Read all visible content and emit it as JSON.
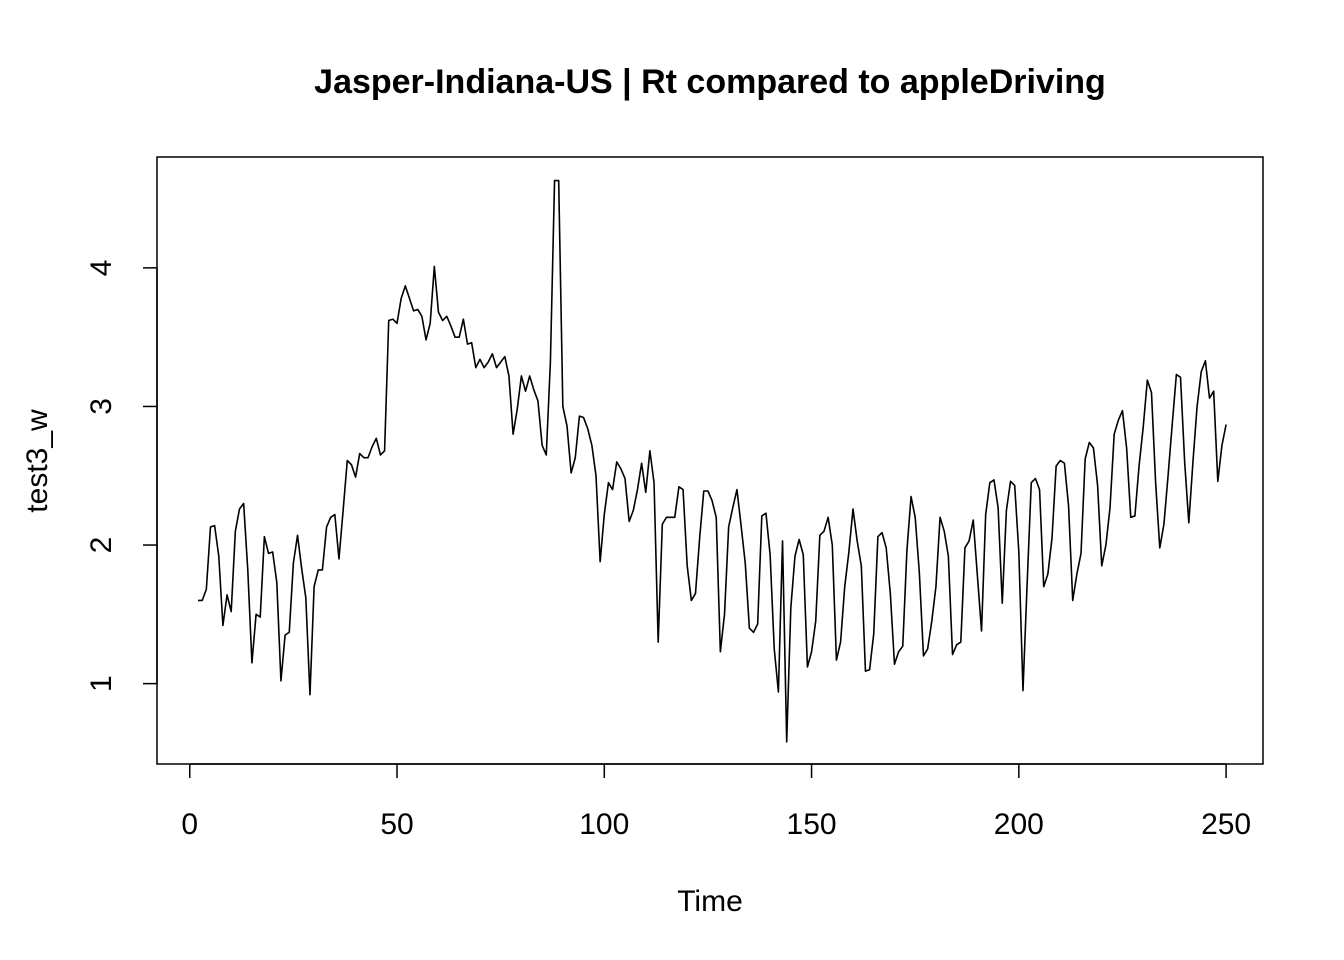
{
  "chart_data": {
    "type": "line",
    "title": "Jasper-Indiana-US | Rt compared to appleDriving",
    "xlabel": "Time",
    "ylabel": "test3_w",
    "xlim": [
      -7.9,
      258.9
    ],
    "ylim": [
      0.42,
      4.8
    ],
    "xticks": [
      0,
      50,
      100,
      150,
      200,
      250
    ],
    "xtick_labels": [
      "0",
      "50",
      "100",
      "150",
      "200",
      "250"
    ],
    "yticks": [
      1,
      2,
      3,
      4
    ],
    "ytick_labels": [
      "1",
      "2",
      "3",
      "4"
    ],
    "grid": false,
    "legend": "none",
    "line_color": "#000000",
    "x_start": 2,
    "series": [
      {
        "values": [
          1.6,
          1.6,
          1.68,
          2.13,
          2.14,
          1.92,
          1.42,
          1.64,
          1.52,
          2.1,
          2.26,
          2.3,
          1.82,
          1.15,
          1.5,
          1.48,
          2.06,
          1.94,
          1.95,
          1.73,
          1.02,
          1.35,
          1.37,
          1.87,
          2.07,
          1.83,
          1.62,
          0.92,
          1.7,
          1.82,
          1.82,
          2.13,
          2.2,
          2.22,
          1.9,
          2.25,
          2.61,
          2.58,
          2.49,
          2.66,
          2.63,
          2.63,
          2.71,
          2.77,
          2.65,
          2.68,
          3.62,
          3.63,
          3.6,
          3.78,
          3.87,
          3.78,
          3.69,
          3.7,
          3.65,
          3.48,
          3.6,
          4.01,
          3.68,
          3.62,
          3.65,
          3.58,
          3.5,
          3.5,
          3.63,
          3.45,
          3.46,
          3.28,
          3.34,
          3.28,
          3.32,
          3.38,
          3.28,
          3.32,
          3.36,
          3.22,
          2.8,
          2.98,
          3.22,
          3.11,
          3.22,
          3.12,
          3.04,
          2.72,
          2.65,
          3.32,
          4.63,
          4.63,
          3.0,
          2.86,
          2.52,
          2.63,
          2.93,
          2.92,
          2.84,
          2.72,
          2.5,
          1.88,
          2.22,
          2.45,
          2.4,
          2.6,
          2.55,
          2.48,
          2.17,
          2.25,
          2.4,
          2.59,
          2.38,
          2.68,
          2.45,
          1.3,
          2.15,
          2.2,
          2.2,
          2.2,
          2.42,
          2.4,
          1.85,
          1.6,
          1.65,
          2.05,
          2.39,
          2.39,
          2.32,
          2.2,
          1.23,
          1.5,
          2.13,
          2.27,
          2.4,
          2.14,
          1.87,
          1.4,
          1.37,
          1.43,
          2.21,
          2.23,
          1.93,
          1.25,
          0.94,
          2.03,
          0.58,
          1.55,
          1.92,
          2.04,
          1.93,
          1.12,
          1.23,
          1.45,
          2.07,
          2.1,
          2.2,
          2.0,
          1.17,
          1.3,
          1.7,
          1.95,
          2.26,
          2.03,
          1.85,
          1.09,
          1.1,
          1.36,
          2.06,
          2.09,
          1.98,
          1.65,
          1.14,
          1.23,
          1.27,
          1.96,
          2.35,
          2.2,
          1.8,
          1.2,
          1.25,
          1.45,
          1.7,
          2.2,
          2.1,
          1.92,
          1.21,
          1.28,
          1.3,
          1.98,
          2.03,
          2.18,
          1.78,
          1.38,
          2.22,
          2.45,
          2.47,
          2.27,
          1.58,
          2.25,
          2.46,
          2.43,
          1.95,
          0.95,
          1.72,
          2.45,
          2.48,
          2.4,
          1.7,
          1.79,
          2.05,
          2.57,
          2.61,
          2.59,
          2.28,
          1.6,
          1.79,
          1.94,
          2.62,
          2.74,
          2.7,
          2.43,
          1.85,
          2.0,
          2.27,
          2.8,
          2.9,
          2.97,
          2.7,
          2.2,
          2.21,
          2.57,
          2.85,
          3.19,
          3.1,
          2.45,
          1.98,
          2.15,
          2.5,
          2.87,
          3.23,
          3.21,
          2.6,
          2.16,
          2.6,
          3.0,
          3.25,
          3.33,
          3.06,
          3.11,
          2.46,
          2.72,
          2.87
        ]
      }
    ]
  }
}
